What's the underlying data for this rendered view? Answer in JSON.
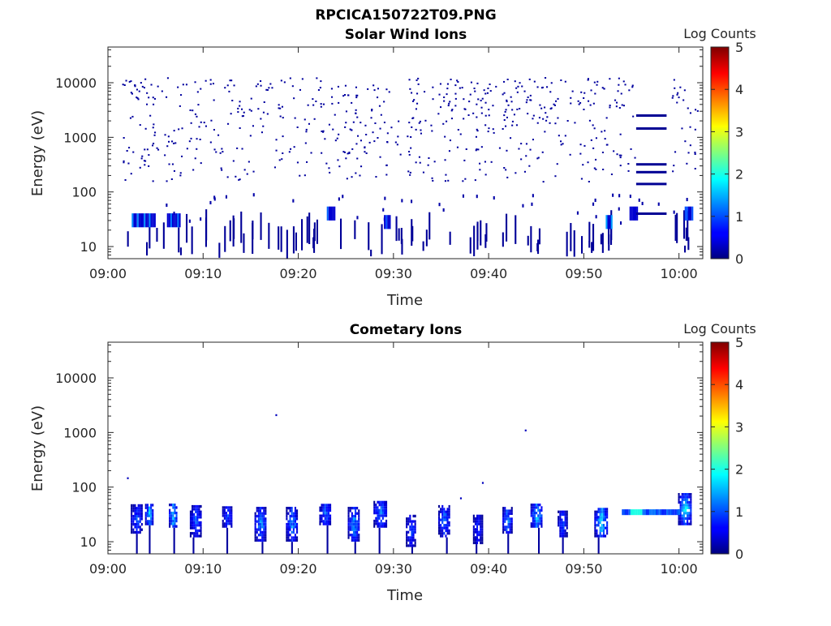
{
  "figure": {
    "title": "RPCICA150722T09.PNG"
  },
  "chart_data": [
    {
      "type": "heatmap",
      "title": "Solar Wind Ions",
      "xlabel": "Time",
      "ylabel": "Energy (eV)",
      "x_ticks": [
        "09:00",
        "09:10",
        "09:20",
        "09:30",
        "09:40",
        "09:50",
        "10:00"
      ],
      "x_range_minutes": [
        0,
        62.5
      ],
      "y_scale": "log",
      "y_ticks": [
        "10",
        "100",
        "1000",
        "10000"
      ],
      "y_range": [
        6,
        45000
      ],
      "colorbar": {
        "label": "Log Counts",
        "ticks": [
          "0",
          "1",
          "2",
          "3",
          "4",
          "5"
        ],
        "range": [
          0,
          5
        ],
        "colormap": "jet"
      },
      "features": {
        "scatter_energy_range": [
          150,
          12000
        ],
        "scatter_time_range": [
          1.5,
          62
        ],
        "low_energy_bands": [
          {
            "t0": 2.5,
            "t1": 5.0,
            "e": 30,
            "level": 1.3
          },
          {
            "t0": 6.2,
            "t1": 7.6,
            "e": 30,
            "level": 1.2
          },
          {
            "t0": 23.0,
            "t1": 23.8,
            "e": 40,
            "level": 1.1
          },
          {
            "t0": 29.0,
            "t1": 29.6,
            "e": 28,
            "level": 1.0
          },
          {
            "t0": 52.3,
            "t1": 53.0,
            "e": 28,
            "level": 1.4
          },
          {
            "t0": 54.8,
            "t1": 55.6,
            "e": 40,
            "level": 1.3
          },
          {
            "t0": 60.6,
            "t1": 61.5,
            "e": 40,
            "level": 1.0
          }
        ],
        "horizontal_lines": [
          {
            "t0": 55.5,
            "t1": 58.7,
            "e": 2500,
            "level": 0.1
          },
          {
            "t0": 55.5,
            "t1": 58.7,
            "e": 1450,
            "level": 0.1
          },
          {
            "t0": 55.5,
            "t1": 58.7,
            "e": 320,
            "level": 0.1
          },
          {
            "t0": 55.5,
            "t1": 58.7,
            "e": 230,
            "level": 0.1
          },
          {
            "t0": 55.5,
            "t1": 58.7,
            "e": 140,
            "level": 0.1
          },
          {
            "t0": 55.5,
            "t1": 58.7,
            "e": 40,
            "level": 0.1
          }
        ]
      }
    },
    {
      "type": "heatmap",
      "title": "Cometary Ions",
      "xlabel": "Time",
      "ylabel": "Energy (eV)",
      "x_ticks": [
        "09:00",
        "09:10",
        "09:20",
        "09:30",
        "09:40",
        "09:50",
        "10:00"
      ],
      "x_range_minutes": [
        0,
        62.5
      ],
      "y_scale": "log",
      "y_ticks": [
        "10",
        "100",
        "1000",
        "10000"
      ],
      "y_range": [
        6,
        45000
      ],
      "colorbar": {
        "label": "Log Counts",
        "ticks": [
          "0",
          "1",
          "2",
          "3",
          "4",
          "5"
        ],
        "range": [
          0,
          5
        ],
        "colormap": "jet"
      },
      "features": {
        "bursts": [
          {
            "t": 3.0,
            "w": 1.2,
            "emin": 14,
            "emax": 45,
            "peak": 1.2
          },
          {
            "t": 4.3,
            "w": 0.8,
            "emin": 20,
            "emax": 45,
            "peak": 1.8
          },
          {
            "t": 6.8,
            "w": 0.8,
            "emin": 18,
            "emax": 45,
            "peak": 2.1
          },
          {
            "t": 9.2,
            "w": 1.2,
            "emin": 12,
            "emax": 45,
            "peak": 1.3
          },
          {
            "t": 12.5,
            "w": 1.0,
            "emin": 18,
            "emax": 40,
            "peak": 1.1
          },
          {
            "t": 16.0,
            "w": 1.2,
            "emin": 10,
            "emax": 40,
            "peak": 1.6
          },
          {
            "t": 19.3,
            "w": 1.2,
            "emin": 10,
            "emax": 40,
            "peak": 1.6
          },
          {
            "t": 22.8,
            "w": 1.2,
            "emin": 20,
            "emax": 45,
            "peak": 1.3
          },
          {
            "t": 25.8,
            "w": 1.2,
            "emin": 10,
            "emax": 40,
            "peak": 1.7
          },
          {
            "t": 28.6,
            "w": 1.4,
            "emin": 18,
            "emax": 55,
            "peak": 1.4
          },
          {
            "t": 31.8,
            "w": 1.0,
            "emin": 8,
            "emax": 30,
            "peak": 1.2
          },
          {
            "t": 35.3,
            "w": 1.2,
            "emin": 12,
            "emax": 45,
            "peak": 1.4
          },
          {
            "t": 38.8,
            "w": 0.9,
            "emin": 9,
            "emax": 30,
            "peak": 1.0
          },
          {
            "t": 41.9,
            "w": 0.9,
            "emin": 14,
            "emax": 40,
            "peak": 1.6
          },
          {
            "t": 45.0,
            "w": 1.2,
            "emin": 18,
            "emax": 45,
            "peak": 1.8
          },
          {
            "t": 47.7,
            "w": 0.9,
            "emin": 12,
            "emax": 35,
            "peak": 1.2
          },
          {
            "t": 51.8,
            "w": 1.4,
            "emin": 12,
            "emax": 40,
            "peak": 2.0
          },
          {
            "t": 60.6,
            "w": 1.4,
            "emin": 20,
            "emax": 70,
            "peak": 2.0
          }
        ],
        "band": {
          "t0": 54.0,
          "t1": 60.0,
          "e": 35,
          "level": 1.1,
          "peak_at": 55.4,
          "peak_level": 2.0
        }
      }
    }
  ]
}
